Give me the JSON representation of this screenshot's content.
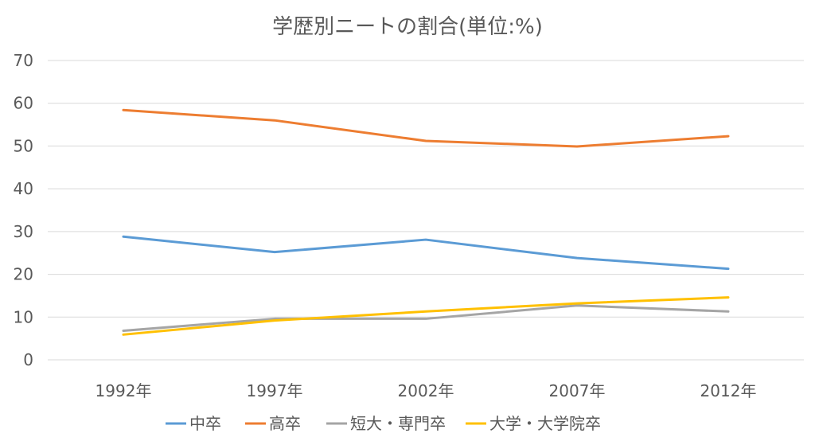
{
  "chart_data": {
    "type": "line",
    "title": "学歴別ニートの割合(単位:%)",
    "xlabel": "",
    "ylabel": "",
    "categories": [
      "1992年",
      "1997年",
      "2002年",
      "2007年",
      "2012年"
    ],
    "ylim": [
      0,
      70
    ],
    "yticks": [
      "0",
      "10",
      "20",
      "30",
      "40",
      "50",
      "60",
      "70"
    ],
    "grid": true,
    "legend_position": "bottom",
    "series": [
      {
        "name": "中卒",
        "color": "#5b9bd5",
        "values": [
          28.8,
          25.2,
          28.1,
          23.8,
          21.3
        ]
      },
      {
        "name": "高卒",
        "color": "#ed7d31",
        "values": [
          58.4,
          56.0,
          51.2,
          49.9,
          52.3
        ]
      },
      {
        "name": "短大・専門卒",
        "color": "#a5a5a5",
        "values": [
          6.8,
          9.6,
          9.6,
          12.7,
          11.3
        ]
      },
      {
        "name": "大学・大学院卒",
        "color": "#ffc000",
        "values": [
          5.9,
          9.2,
          11.3,
          13.2,
          14.6
        ]
      }
    ]
  }
}
